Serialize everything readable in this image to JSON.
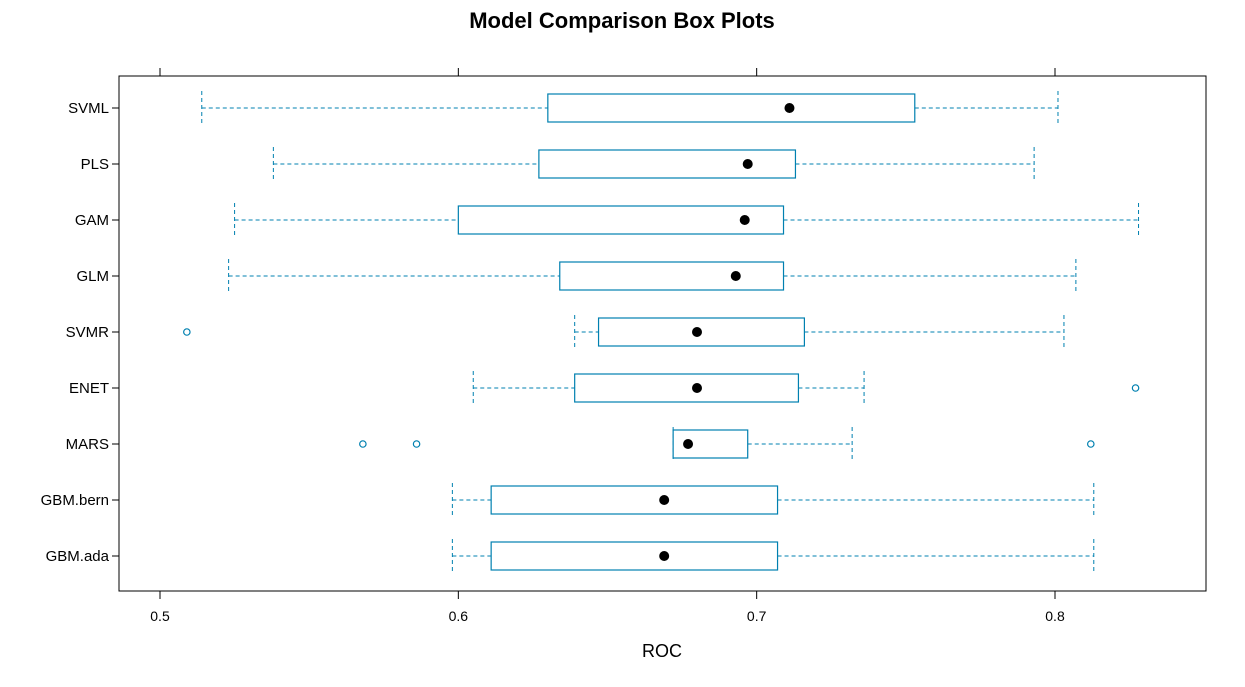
{
  "colors": {
    "box_stroke": "#0080B0",
    "whisker_stroke": "#0080B0",
    "median_fill": "#000000",
    "outlier_stroke": "#0080B0",
    "frame": "#000000",
    "background": "#ffffff"
  },
  "chart_data": {
    "type": "boxplot",
    "title": "Model Comparison Box Plots",
    "xlabel": "ROC",
    "ylabel": "",
    "xlim": [
      0.487,
      0.85
    ],
    "xticks": [
      "0.5",
      "0.6",
      "0.7",
      "0.8"
    ],
    "tick_values": [
      0.5,
      0.6,
      0.7,
      0.8
    ],
    "grid": false,
    "categories": [
      "SVML",
      "PLS",
      "GAM",
      "GLM",
      "SVMR",
      "ENET",
      "MARS",
      "GBM.bern",
      "GBM.ada"
    ],
    "boxes": [
      {
        "label": "SVML",
        "whisker_low": 0.514,
        "q1": 0.63,
        "median": 0.711,
        "q3": 0.753,
        "whisker_high": 0.801,
        "outliers": []
      },
      {
        "label": "PLS",
        "whisker_low": 0.538,
        "q1": 0.627,
        "median": 0.697,
        "q3": 0.713,
        "whisker_high": 0.793,
        "outliers": []
      },
      {
        "label": "GAM",
        "whisker_low": 0.525,
        "q1": 0.6,
        "median": 0.696,
        "q3": 0.709,
        "whisker_high": 0.828,
        "outliers": []
      },
      {
        "label": "GLM",
        "whisker_low": 0.523,
        "q1": 0.634,
        "median": 0.693,
        "q3": 0.709,
        "whisker_high": 0.807,
        "outliers": []
      },
      {
        "label": "SVMR",
        "whisker_low": 0.639,
        "q1": 0.647,
        "median": 0.68,
        "q3": 0.716,
        "whisker_high": 0.803,
        "outliers": [
          0.509
        ]
      },
      {
        "label": "ENET",
        "whisker_low": 0.605,
        "q1": 0.639,
        "median": 0.68,
        "q3": 0.714,
        "whisker_high": 0.736,
        "outliers": [
          0.827
        ]
      },
      {
        "label": "MARS",
        "whisker_low": 0.672,
        "q1": 0.672,
        "median": 0.677,
        "q3": 0.697,
        "whisker_high": 0.732,
        "outliers": [
          0.568,
          0.586,
          0.812
        ]
      },
      {
        "label": "GBM.bern",
        "whisker_low": 0.598,
        "q1": 0.611,
        "median": 0.669,
        "q3": 0.707,
        "whisker_high": 0.813,
        "outliers": []
      },
      {
        "label": "GBM.ada",
        "whisker_low": 0.598,
        "q1": 0.611,
        "median": 0.669,
        "q3": 0.707,
        "whisker_high": 0.813,
        "outliers": []
      }
    ]
  }
}
